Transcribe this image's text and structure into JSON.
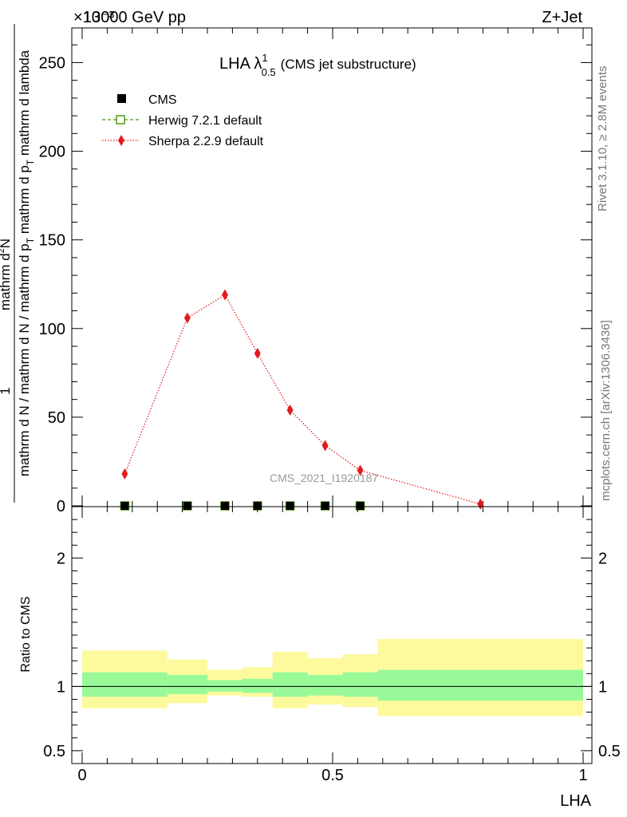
{
  "header": {
    "energy_label": "13000 GeV pp",
    "process_label": "Z+Jet",
    "scale_label": "×10⁻³"
  },
  "side_labels": {
    "rivet": "Rivet 3.1.10, ≥ 2.8M events",
    "mcplots": "mcplots.cern.ch [arXiv:1306.3436]"
  },
  "chart_data": [
    {
      "type": "line",
      "title": "LHA λ",
      "title_sup": "1",
      "title_sub": "0.5",
      "title_suffix": "(CMS jet substructure)",
      "watermark": "CMS_2021_I1920187",
      "ylabel_parts": [
        "1",
        "mathrm d N / mathrm d N / mathrm d p",
        "T",
        "mathrm d p",
        "T",
        "mathrm d lambda",
        "mathrm d",
        "2",
        "N"
      ],
      "xlim": [
        0,
        1
      ],
      "ylim": [
        0,
        270
      ],
      "y_ticks": [
        0,
        50,
        100,
        150,
        200,
        250
      ],
      "legend_placement": "top-left",
      "series": [
        {
          "name": "CMS",
          "marker": "filled-square",
          "color": "#000000",
          "x": [
            0.085,
            0.21,
            0.285,
            0.35,
            0.415,
            0.485,
            0.555
          ],
          "y": [
            0,
            0,
            0,
            0,
            0,
            0,
            0
          ]
        },
        {
          "name": "Herwig 7.2.1 default",
          "marker": "open-square",
          "color": "#4d9a0f",
          "x": [
            0.085,
            0.21,
            0.285,
            0.35,
            0.415,
            0.485,
            0.555
          ],
          "y": [
            0,
            0,
            0,
            0,
            0,
            0,
            0
          ]
        },
        {
          "name": "Sherpa 2.2.9 default",
          "marker": "diamond",
          "color": "#e31a1c",
          "x": [
            0.085,
            0.21,
            0.285,
            0.35,
            0.415,
            0.485,
            0.555,
            0.795
          ],
          "y": [
            18,
            106,
            119,
            86,
            54,
            34,
            20,
            1
          ]
        }
      ]
    },
    {
      "type": "area",
      "ylabel": "Ratio to CMS",
      "xlabel": "LHA",
      "xlim": [
        0,
        1
      ],
      "ylim": [
        0.4,
        2.4
      ],
      "y_ticks": [
        0.5,
        1,
        2
      ],
      "x_ticks": [
        0,
        0.5,
        1
      ],
      "x_tick_labels": [
        "0",
        "0.5",
        "1"
      ],
      "y_tick_labels": [
        "0.5",
        "1",
        "2"
      ],
      "reference_line": 1,
      "bins": [
        {
          "x0": 0.0,
          "x1": 0.17,
          "stat_lo": 0.92,
          "stat_hi": 1.11,
          "tot_lo": 0.83,
          "tot_hi": 1.28
        },
        {
          "x0": 0.17,
          "x1": 0.25,
          "stat_lo": 0.94,
          "stat_hi": 1.09,
          "tot_lo": 0.87,
          "tot_hi": 1.21
        },
        {
          "x0": 0.25,
          "x1": 0.32,
          "stat_lo": 0.96,
          "stat_hi": 1.05,
          "tot_lo": 0.93,
          "tot_hi": 1.13
        },
        {
          "x0": 0.32,
          "x1": 0.38,
          "stat_lo": 0.95,
          "stat_hi": 1.06,
          "tot_lo": 0.92,
          "tot_hi": 1.15
        },
        {
          "x0": 0.38,
          "x1": 0.45,
          "stat_lo": 0.92,
          "stat_hi": 1.11,
          "tot_lo": 0.83,
          "tot_hi": 1.27
        },
        {
          "x0": 0.45,
          "x1": 0.52,
          "stat_lo": 0.93,
          "stat_hi": 1.09,
          "tot_lo": 0.86,
          "tot_hi": 1.22
        },
        {
          "x0": 0.52,
          "x1": 0.59,
          "stat_lo": 0.92,
          "stat_hi": 1.11,
          "tot_lo": 0.84,
          "tot_hi": 1.25
        },
        {
          "x0": 0.59,
          "x1": 1.0,
          "stat_lo": 0.89,
          "stat_hi": 1.13,
          "tot_lo": 0.77,
          "tot_hi": 1.37
        }
      ],
      "colors": {
        "stat": "#99f999",
        "total": "#fdfa9d"
      }
    }
  ]
}
